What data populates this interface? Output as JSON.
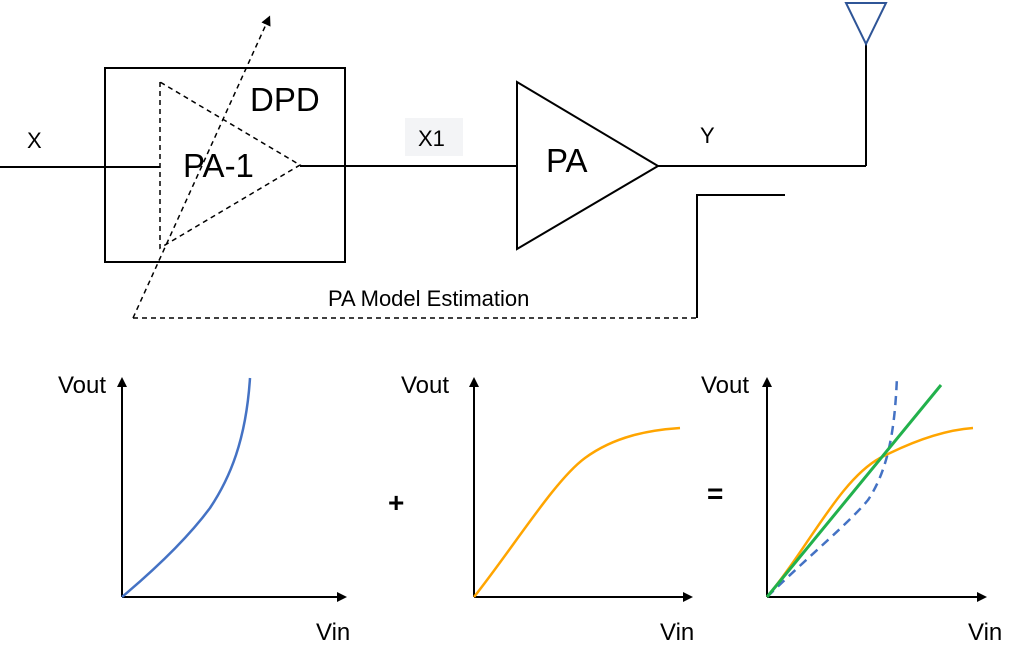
{
  "diagram": {
    "labels": {
      "input": "X",
      "dpd": "DPD",
      "pa_inverse": "PA-1",
      "intermediate": "X1",
      "pa": "PA",
      "output": "Y",
      "feedback": "PA Model Estimation"
    }
  },
  "plots": {
    "panel1": {
      "y_label": "Vout",
      "x_label": "Vin"
    },
    "panel2": {
      "y_label": "Vout",
      "x_label": "Vin"
    },
    "panel3": {
      "y_label": "Vout",
      "x_label": "Vin"
    },
    "plus_sign": "+",
    "equals_sign": "="
  },
  "colors": {
    "blue_curve": "#4472c4",
    "orange_curve": "#ffa500",
    "green_line": "#22b14c",
    "antenna": "#2f5597"
  }
}
